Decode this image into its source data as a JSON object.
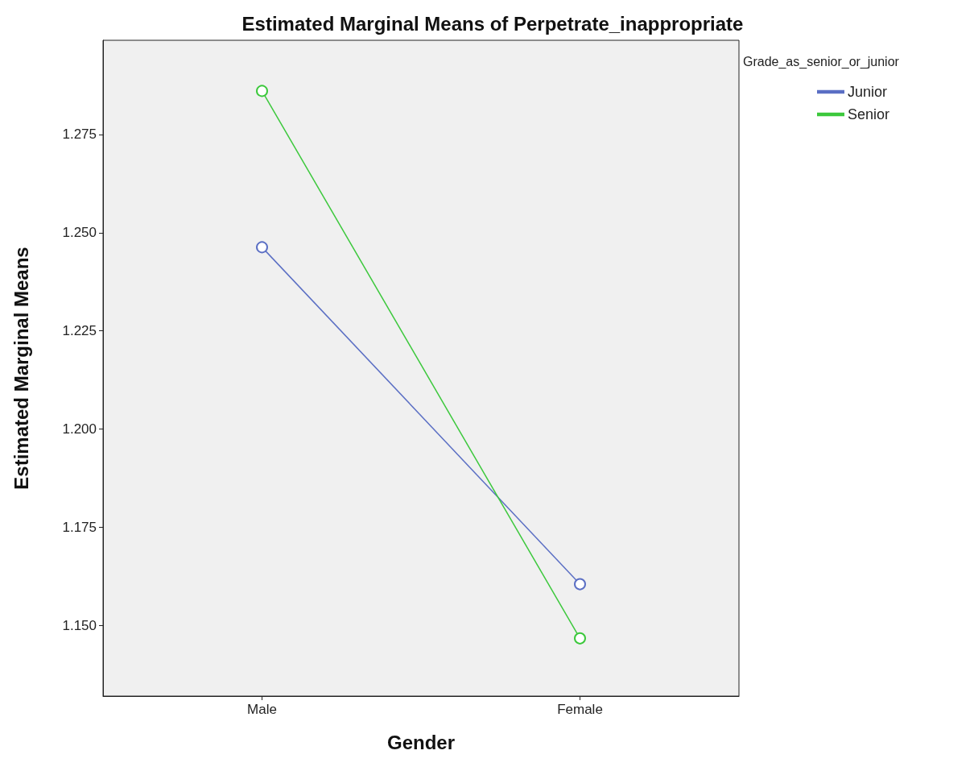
{
  "chart_data": {
    "type": "line",
    "title": "Estimated Marginal Means of Perpetrate_inappropriate",
    "xlabel": "Gender",
    "ylabel": "Estimated Marginal Means",
    "legend_title": "Grade_as_senior_or_junior",
    "categories": [
      "Male",
      "Female"
    ],
    "series": [
      {
        "name": "Junior",
        "color": "#5b6fc4",
        "values": [
          1.2463,
          1.1605
        ]
      },
      {
        "name": "Senior",
        "color": "#3cc83c",
        "values": [
          1.2861,
          1.1467
        ]
      }
    ],
    "ylim": [
      1.132,
      1.299
    ],
    "yticks": [
      {
        "value": 1.15,
        "label": "1.150"
      },
      {
        "value": 1.175,
        "label": "1.175"
      },
      {
        "value": 1.2,
        "label": "1.200"
      },
      {
        "value": 1.225,
        "label": "1.225"
      },
      {
        "value": 1.25,
        "label": "1.250"
      },
      {
        "value": 1.275,
        "label": "1.275"
      }
    ],
    "grid": false,
    "legend": "top right",
    "marker": "circle",
    "line_style": "solid"
  }
}
